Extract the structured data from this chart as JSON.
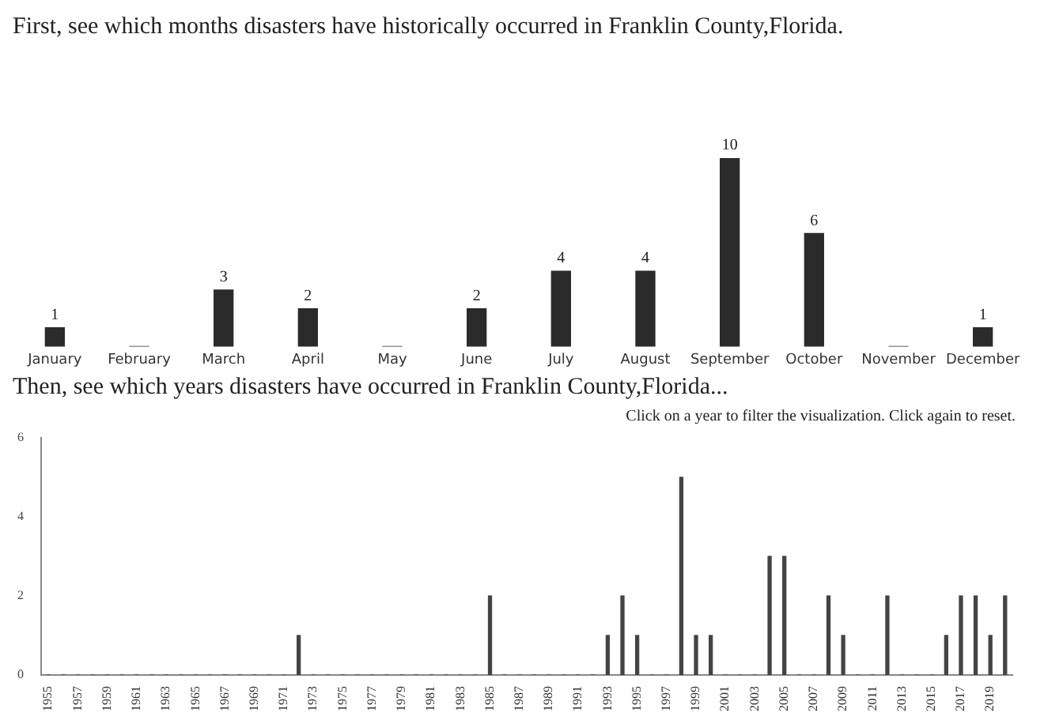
{
  "chart_data": [
    {
      "type": "bar",
      "title": "First, see which months disasters have historically occurred in Franklin County,Florida.",
      "categories": [
        "January",
        "February",
        "March",
        "April",
        "May",
        "June",
        "July",
        "August",
        "September",
        "October",
        "November",
        "December"
      ],
      "values": [
        1,
        0,
        3,
        2,
        0,
        2,
        4,
        4,
        10,
        6,
        0,
        1
      ],
      "value_labels": [
        "1",
        null,
        "3",
        "2",
        null,
        "2",
        "4",
        "4",
        "10",
        "6",
        null,
        "1"
      ],
      "color": "#2b2b2b",
      "tick_labels": "x",
      "grid": false,
      "legend": false
    },
    {
      "type": "bar",
      "title": "Then, see which years disasters have occurred in Franklin County,Florida...",
      "annotations": [
        "Click on a year to filter the visualization. Click again to reset."
      ],
      "categories": [
        "1955",
        null,
        "1957",
        null,
        "1959",
        null,
        "1961",
        null,
        "1963",
        null,
        "1965",
        null,
        "1967",
        null,
        "1969",
        null,
        "1971",
        null,
        "1973",
        null,
        "1975",
        null,
        "1977",
        null,
        "1979",
        null,
        "1981",
        null,
        "1983",
        null,
        "1985",
        null,
        "1987",
        null,
        "1989",
        null,
        "1991",
        null,
        "1993",
        null,
        "1995",
        null,
        "1997",
        null,
        "1999",
        null,
        "2001",
        null,
        "2003",
        null,
        "2005",
        null,
        "2007",
        null,
        "2009",
        null,
        "2011",
        null,
        "2013",
        null,
        "2015",
        null,
        "2017",
        null,
        "2019",
        null
      ],
      "values": [
        0,
        0,
        0,
        0,
        0,
        0,
        0,
        0,
        0,
        0,
        0,
        0,
        0,
        0,
        0,
        0,
        0,
        1,
        0,
        0,
        0,
        0,
        0,
        0,
        0,
        0,
        0,
        0,
        0,
        0,
        2,
        0,
        0,
        0,
        0,
        0,
        0,
        0,
        1,
        2,
        1,
        0,
        0,
        5,
        1,
        1,
        0,
        0,
        0,
        3,
        3,
        0,
        0,
        2,
        1,
        0,
        0,
        2,
        0,
        0,
        0,
        1,
        2,
        2,
        1,
        2
      ],
      "color": "#444444",
      "ylim": [
        0,
        6
      ],
      "yticks": [
        0,
        2,
        4,
        6
      ],
      "grid": false,
      "legend": false
    }
  ]
}
